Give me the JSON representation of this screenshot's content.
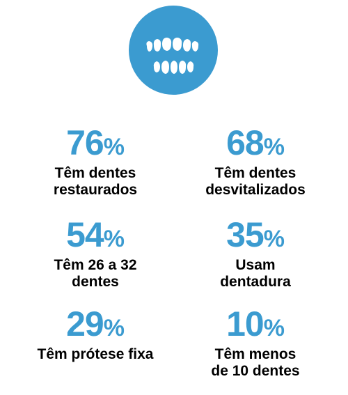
{
  "colors": {
    "accent": "#3b9bd0",
    "text": "#000000",
    "icon_fg": "#ffffff"
  },
  "icon": {
    "name": "teeth-icon"
  },
  "stats": [
    {
      "value": "76",
      "unit": "%",
      "label": "Têm dentes\nrestaurados"
    },
    {
      "value": "68",
      "unit": "%",
      "label": "Têm dentes\ndesvitalizados"
    },
    {
      "value": "54",
      "unit": "%",
      "label": "Têm 26 a 32\ndentes"
    },
    {
      "value": "35",
      "unit": "%",
      "label": "Usam\ndentadura"
    },
    {
      "value": "29",
      "unit": "%",
      "label": "Têm prótese fixa"
    },
    {
      "value": "10",
      "unit": "%",
      "label": "Têm menos\nde 10 dentes"
    }
  ]
}
